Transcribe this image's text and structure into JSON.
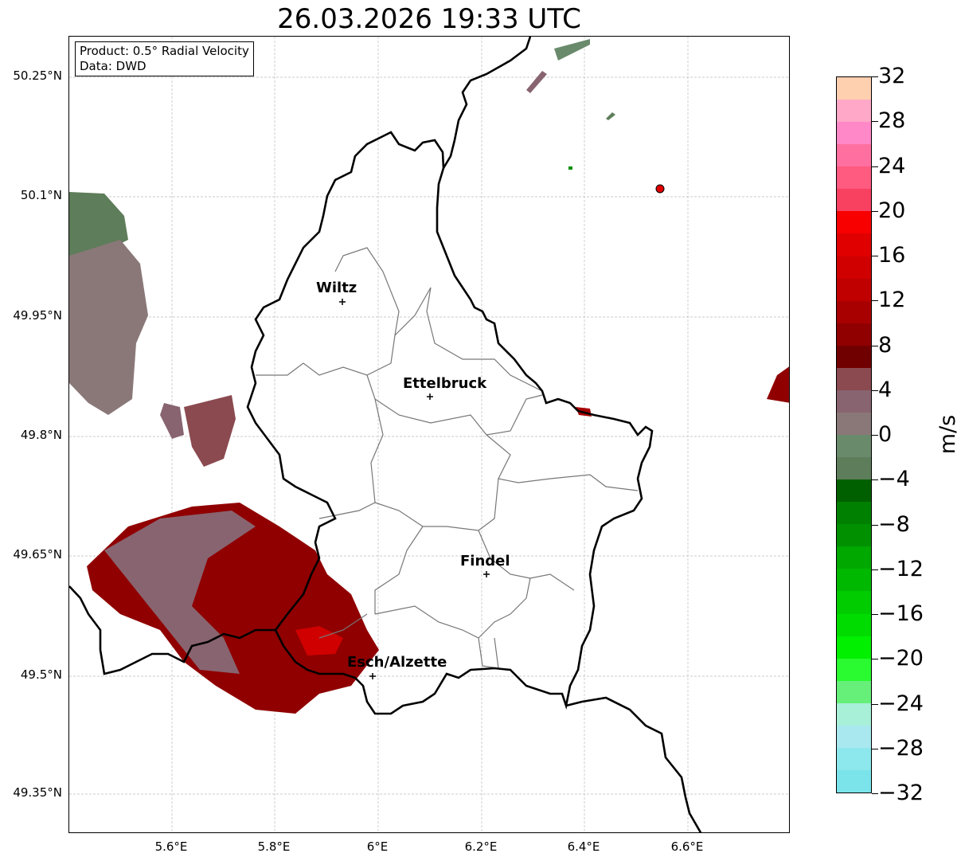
{
  "title": "26.03.2026 19:33 UTC",
  "info": {
    "product": "Product: 0.5° Radial Velocity",
    "data": "Data: DWD"
  },
  "lat_labels": [
    "50.25°N",
    "50.1°N",
    "49.95°N",
    "49.8°N",
    "49.65°N",
    "49.5°N",
    "49.35°N"
  ],
  "lon_labels": [
    "5.6°E",
    "5.8°E",
    "6°E",
    "6.2°E",
    "6.4°E",
    "6.6°E"
  ],
  "cities": [
    "Wiltz",
    "Ettelbruck",
    "Findel",
    "Esch/Alzette"
  ],
  "colorbar": {
    "unit": "m/s",
    "tick_labels": [
      "32",
      "28",
      "24",
      "20",
      "16",
      "12",
      "8",
      "4",
      "0",
      "−4",
      "−8",
      "−12",
      "−16",
      "−20",
      "−24",
      "−28",
      "−32"
    ],
    "colors": [
      "#7ae4ea",
      "#8ce8ec",
      "#a8e8ee",
      "#a8f0d8",
      "#66f07a",
      "#2afa30",
      "#00f000",
      "#00dc00",
      "#00cc00",
      "#00b800",
      "#00a800",
      "#009000",
      "#008000",
      "#006000",
      "#5e7d5a",
      "#6a8a6c",
      "#8a7878",
      "#886470",
      "#8a4a50",
      "#700000",
      "#900000",
      "#a80000",
      "#c00000",
      "#d00000",
      "#e00000",
      "#f80000",
      "#f84060",
      "#ff5a80",
      "#ff70a0",
      "#ff88c8",
      "#ffa8c8",
      "#ffd0b0"
    ]
  }
}
